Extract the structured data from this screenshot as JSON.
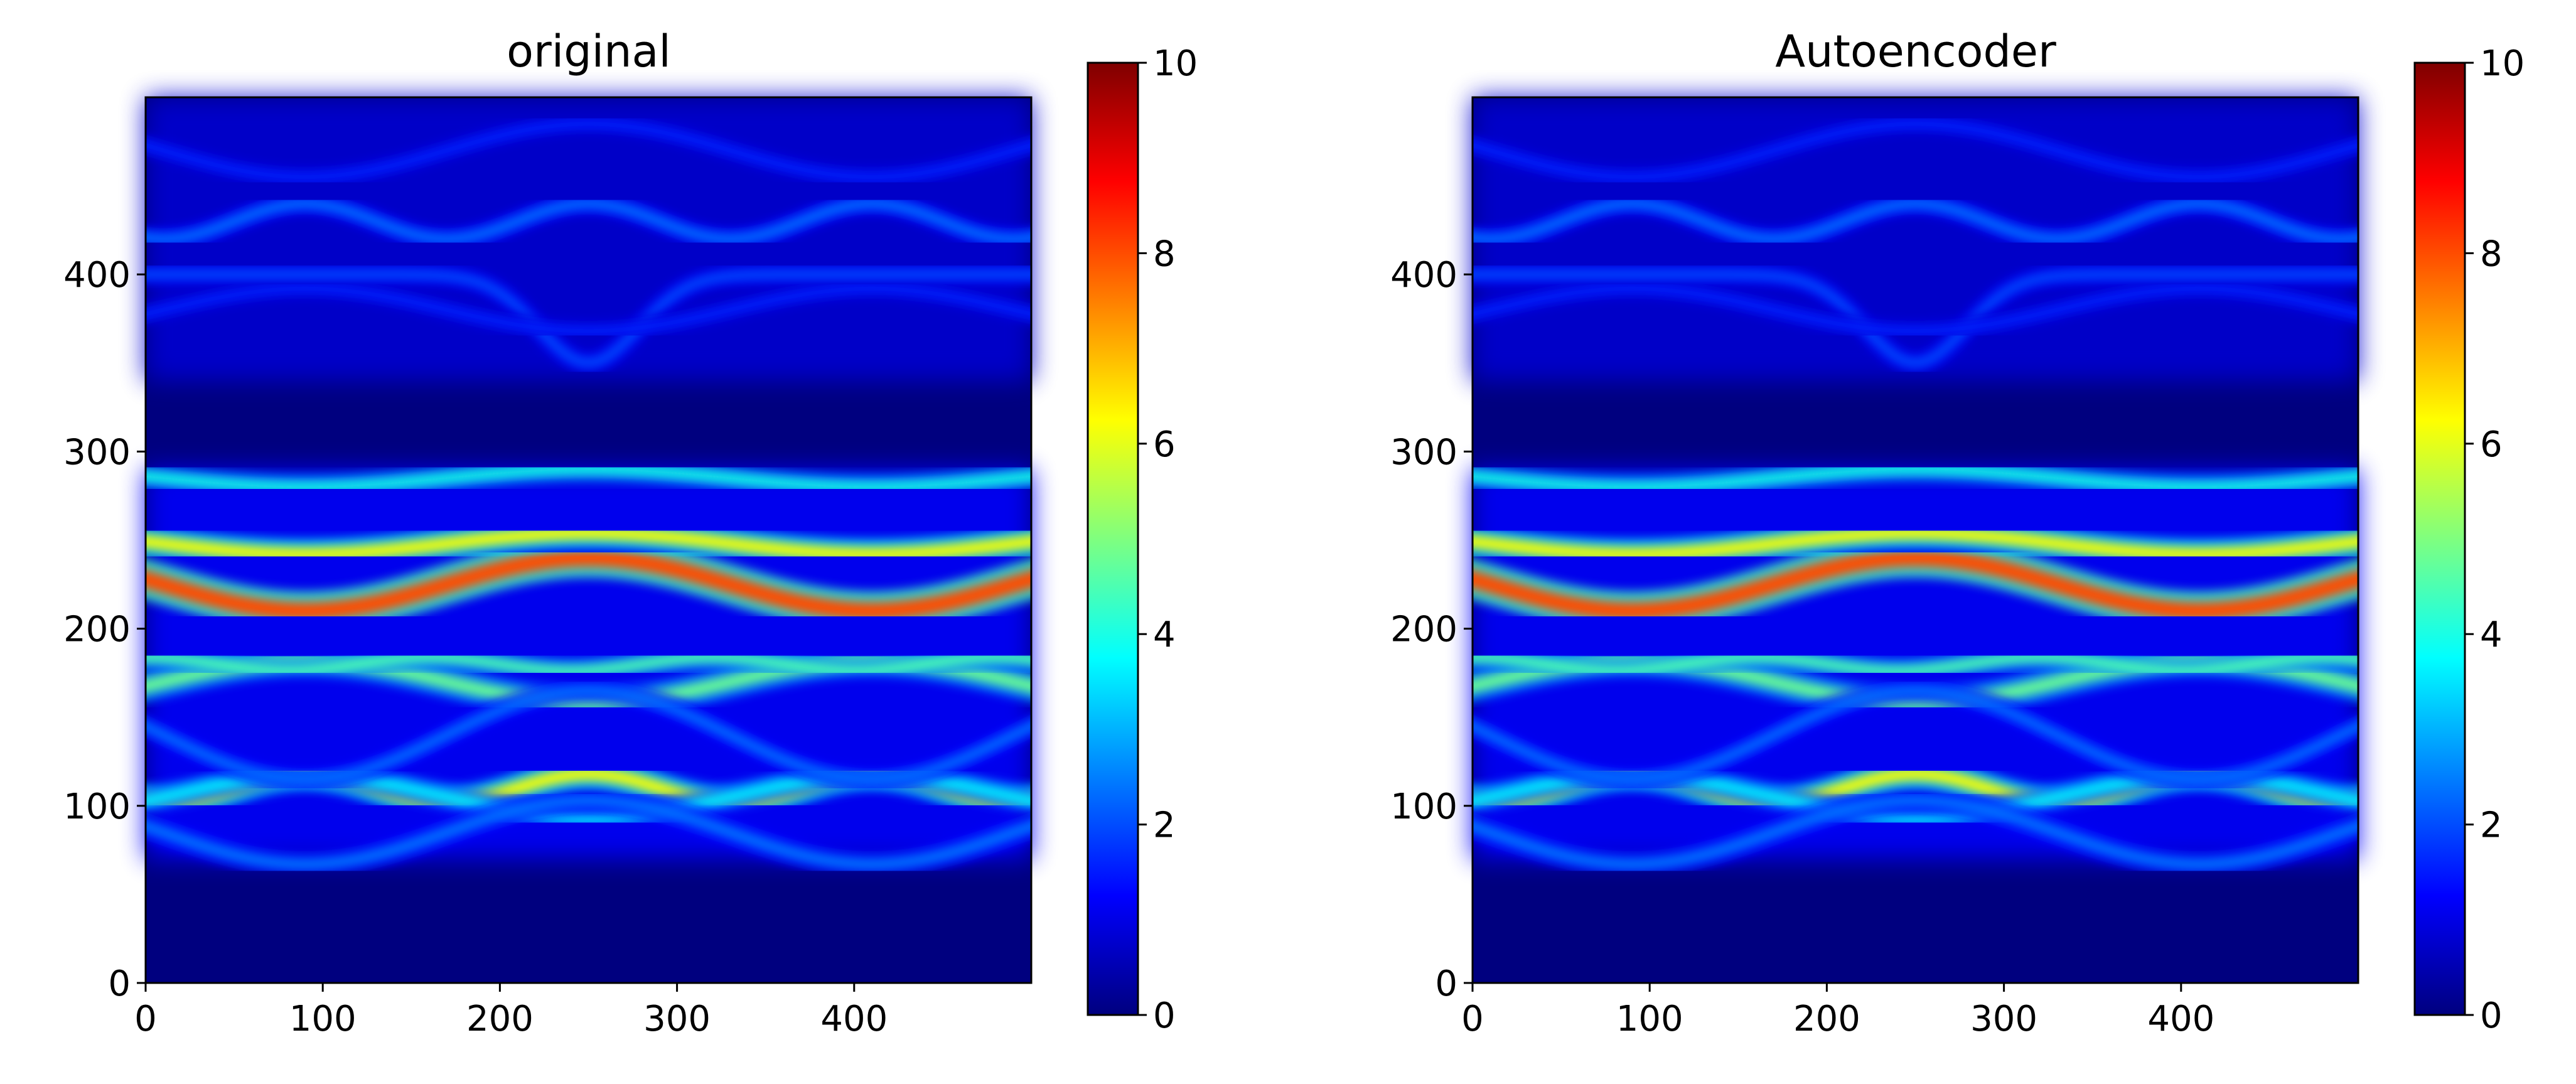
{
  "colormap": {
    "name": "jet",
    "stops": [
      "#00007f",
      "#0000ff",
      "#007fff",
      "#00ffff",
      "#7fff7f",
      "#ffff00",
      "#ff7f00",
      "#ff0000",
      "#7f0000"
    ]
  },
  "chart_data": [
    {
      "type": "heatmap",
      "title": "original",
      "xlabel": "",
      "ylabel": "",
      "xlim": [
        0,
        500
      ],
      "ylim": [
        0,
        500
      ],
      "xticks": [
        "0",
        "100",
        "200",
        "300",
        "400"
      ],
      "yticks": [
        "0",
        "100",
        "200",
        "300",
        "400"
      ],
      "colorbar": {
        "min": 0,
        "max": 10,
        "ticks": [
          "0",
          "2",
          "4",
          "6",
          "8",
          "10"
        ]
      },
      "grid": false,
      "description": "Band-structure style intensity map: bright red/yellow band near y=210-240, cyan/green bands near y=180, 160, 105-120, faint blue bands above y=350"
    },
    {
      "type": "heatmap",
      "title": "Autoencoder",
      "xlabel": "",
      "ylabel": "",
      "xlim": [
        0,
        500
      ],
      "ylim": [
        0,
        500
      ],
      "xticks": [
        "0",
        "100",
        "200",
        "300",
        "400"
      ],
      "yticks": [
        "0",
        "100",
        "200",
        "300",
        "400"
      ],
      "colorbar": {
        "min": 0,
        "max": 10,
        "ticks": [
          "0",
          "2",
          "4",
          "6",
          "8",
          "10"
        ]
      },
      "grid": false,
      "description": "Autoencoder reconstruction of the same band map with small artifacts"
    }
  ]
}
